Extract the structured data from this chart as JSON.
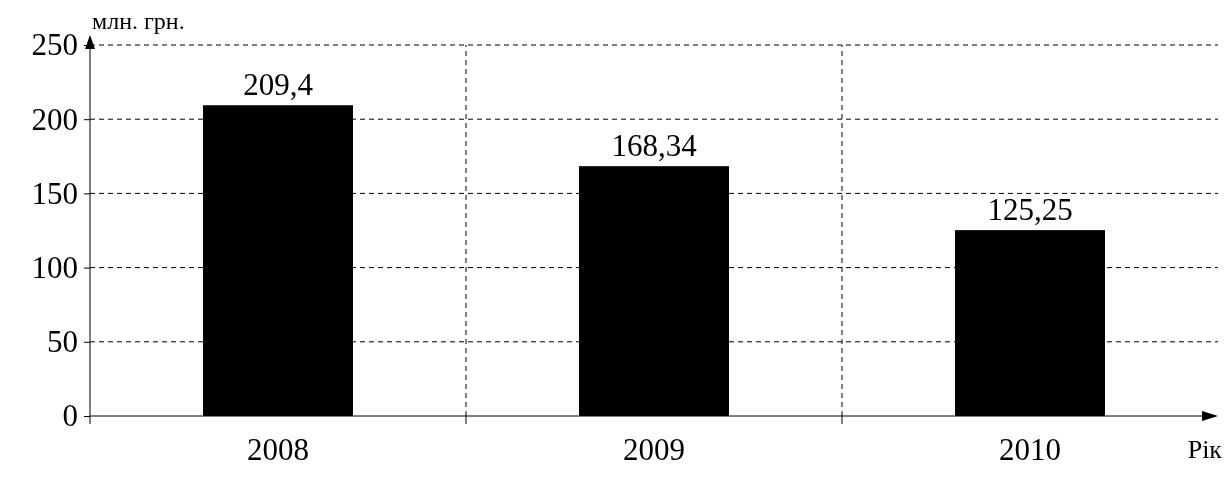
{
  "chart_data": {
    "type": "bar",
    "ylabel": "млн. грн.",
    "xlabel": "Рік",
    "categories": [
      "2008",
      "2009",
      "2010"
    ],
    "values": [
      209.4,
      168.34,
      125.25
    ],
    "value_labels": [
      "209,4",
      "168,34",
      "125,25"
    ],
    "color": "#000000",
    "ylim": [
      0,
      250
    ],
    "yticks": [
      0,
      50,
      100,
      150,
      200,
      250
    ],
    "grid": true
  }
}
